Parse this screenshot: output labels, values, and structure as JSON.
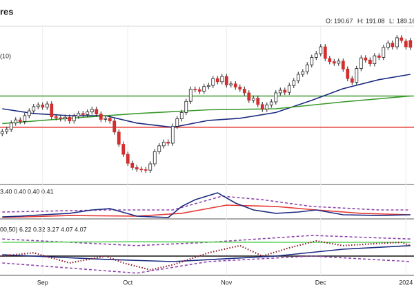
{
  "chart_data": [
    {
      "type": "candlestick",
      "title": "res",
      "label": "(10)",
      "ohlc_labels": [
        "O:",
        "H:",
        "L:"
      ],
      "ohlc_values": [
        190.67,
        191.08,
        189.16
      ],
      "open": [
        173.2,
        173.6,
        174.0,
        175.2,
        175.8,
        175.5,
        176.6,
        177.5,
        178.3,
        178.6,
        178.2,
        178.8,
        176.4,
        176.2,
        176.0,
        176.3,
        175.6,
        176.5,
        177.0,
        176.8,
        177.3,
        177.8,
        176.9,
        175.9,
        176.1,
        175.6,
        173.5,
        171.2,
        169.3,
        167.6,
        166.8,
        166.5,
        166.4,
        166.3,
        167.5,
        169.8,
        170.9,
        171.6,
        171.4,
        174.6,
        176.0,
        177.2,
        179.3,
        181.6,
        181.5,
        181.2,
        182.1,
        182.3,
        183.6,
        183.0,
        184.0,
        182.4,
        182.6,
        182.0,
        181.6,
        180.9,
        179.5,
        179.9,
        178.7,
        177.8,
        178.6,
        179.2,
        180.9,
        181.4,
        181.0,
        182.3,
        183.2,
        184.4,
        184.9,
        186.2,
        187.6,
        188.3,
        189.6,
        187.4,
        186.8,
        186.5,
        186.9,
        185.4,
        183.6,
        182.9,
        185.5,
        187.5,
        187.1,
        186.4,
        187.9,
        187.6,
        189.5,
        190.3,
        189.6,
        191.3,
        190.67,
        190.8
      ],
      "high": [
        174.1,
        174.5,
        175.7,
        176.3,
        176.3,
        177.1,
        178.0,
        178.8,
        179.1,
        179.1,
        179.3,
        179.3,
        176.9,
        176.7,
        176.8,
        176.8,
        177.0,
        177.5,
        177.5,
        177.8,
        178.3,
        178.3,
        177.4,
        176.6,
        176.6,
        176.1,
        174.0,
        171.7,
        169.8,
        168.1,
        167.3,
        167.0,
        166.9,
        168.0,
        170.3,
        171.4,
        172.1,
        172.1,
        175.1,
        176.5,
        177.7,
        179.8,
        182.1,
        182.1,
        182.0,
        182.6,
        182.8,
        184.1,
        184.1,
        184.5,
        184.5,
        183.1,
        183.1,
        182.5,
        182.1,
        181.4,
        180.4,
        180.4,
        179.2,
        179.1,
        179.7,
        181.4,
        181.9,
        181.9,
        182.8,
        183.7,
        184.9,
        185.4,
        186.7,
        188.1,
        188.8,
        190.1,
        190.1,
        187.9,
        187.3,
        187.4,
        187.4,
        185.9,
        184.1,
        186.0,
        188.0,
        188.0,
        187.6,
        188.4,
        188.4,
        190.0,
        190.8,
        190.8,
        191.8,
        191.8,
        191.1,
        191.3
      ],
      "low": [
        172.7,
        173.1,
        173.5,
        174.7,
        175.0,
        175.0,
        176.1,
        177.0,
        177.8,
        177.7,
        177.7,
        175.9,
        175.7,
        175.5,
        175.5,
        175.1,
        175.1,
        176.0,
        176.3,
        176.3,
        176.8,
        176.4,
        175.4,
        175.4,
        175.1,
        173.0,
        170.7,
        168.8,
        167.1,
        166.3,
        166.0,
        165.9,
        165.8,
        165.8,
        167.0,
        169.3,
        170.4,
        170.9,
        170.9,
        174.1,
        175.5,
        176.7,
        178.8,
        181.0,
        180.7,
        180.7,
        181.6,
        181.8,
        182.5,
        182.5,
        181.9,
        181.9,
        181.5,
        181.1,
        180.4,
        179.0,
        179.0,
        178.2,
        177.3,
        177.3,
        178.1,
        178.7,
        180.4,
        180.5,
        180.5,
        181.8,
        182.7,
        183.9,
        184.4,
        185.7,
        187.1,
        187.8,
        186.9,
        186.3,
        186.0,
        186.0,
        184.9,
        183.1,
        182.4,
        182.4,
        185.0,
        186.6,
        185.9,
        185.9,
        187.1,
        187.1,
        189.0,
        189.1,
        189.1,
        190.3,
        189.1,
        189.0
      ],
      "close": [
        173.6,
        174.0,
        175.2,
        175.8,
        175.5,
        176.6,
        177.5,
        178.3,
        178.6,
        178.2,
        178.8,
        176.4,
        176.2,
        176.0,
        176.3,
        175.6,
        176.5,
        177.0,
        176.8,
        177.3,
        177.8,
        176.9,
        175.9,
        176.1,
        175.6,
        173.5,
        171.2,
        169.3,
        167.6,
        166.8,
        166.5,
        166.4,
        166.3,
        167.5,
        169.8,
        170.9,
        171.6,
        171.4,
        174.6,
        176.0,
        177.2,
        179.3,
        181.6,
        181.5,
        181.2,
        182.1,
        182.3,
        183.6,
        183.0,
        184.0,
        182.4,
        182.6,
        182.0,
        181.6,
        180.9,
        179.5,
        179.9,
        178.7,
        177.8,
        178.6,
        179.2,
        180.9,
        181.4,
        181.0,
        182.3,
        183.2,
        184.4,
        184.9,
        186.2,
        187.6,
        188.3,
        189.6,
        187.4,
        186.8,
        186.5,
        186.9,
        185.4,
        183.6,
        182.9,
        185.5,
        187.5,
        187.1,
        186.4,
        187.9,
        187.6,
        189.5,
        190.3,
        189.6,
        191.3,
        190.8,
        189.6,
        189.5
      ],
      "up_color": "#ffffff",
      "down_color": "#d32f2f",
      "ylim": [
        163.6,
        193.5
      ],
      "xlim": [
        -0.5,
        91.8
      ],
      "xticks": [
        {
          "value": 9,
          "label": "Sep"
        },
        {
          "value": 28,
          "label": "Oct"
        },
        {
          "value": 50,
          "label": "Nov"
        },
        {
          "value": 71,
          "label": "Dec"
        },
        {
          "value": 90,
          "label": "2024"
        }
      ],
      "grid": true,
      "series": [
        {
          "color": "#1b2a80",
          "x": [
            0,
            7,
            15,
            23,
            30,
            38,
            46,
            53,
            61,
            69,
            76,
            84,
            91
          ],
          "values": [
            177.9,
            177.0,
            176.6,
            176.6,
            175.2,
            174.4,
            175.7,
            176.1,
            177.2,
            179.5,
            181.7,
            183.4,
            184.4
          ]
        },
        {
          "color": "#3a9a2a",
          "x": [
            0,
            15,
            30,
            46,
            61,
            76,
            91
          ],
          "values": [
            175.1,
            176.1,
            177.0,
            177.7,
            177.9,
            179.2,
            180.3
          ]
        }
      ],
      "hlines": [
        {
          "value": 174.4,
          "color": "#e53935"
        },
        {
          "value": 180.3,
          "color": "#3a9a2a"
        }
      ]
    },
    {
      "type": "line",
      "legend_text": "3.40 0.40 0.40 0.41",
      "ylim": [
        0.35,
        0.75
      ],
      "xlim": [
        -0.5,
        91.8
      ],
      "series": [
        {
          "color": "#8e44ad",
          "style": "dashed",
          "x": [
            0,
            23,
            38,
            49,
            58,
            69,
            84,
            91
          ],
          "values": [
            0.437,
            0.463,
            0.463,
            0.637,
            0.593,
            0.507,
            0.463,
            0.463
          ]
        },
        {
          "color": "#e53935",
          "x": [
            0,
            15,
            30,
            40,
            50,
            61,
            70,
            80,
            91
          ],
          "values": [
            0.367,
            0.393,
            0.385,
            0.42,
            0.524,
            0.507,
            0.463,
            0.42,
            0.402
          ]
        },
        {
          "color": "#1b2a80",
          "x": [
            0,
            4,
            9,
            15,
            20,
            24,
            30,
            37,
            40,
            43,
            48,
            52,
            56,
            61,
            66,
            70,
            76,
            84,
            91
          ],
          "values": [
            0.376,
            0.385,
            0.402,
            0.42,
            0.463,
            0.48,
            0.385,
            0.367,
            0.507,
            0.593,
            0.68,
            0.55,
            0.463,
            0.42,
            0.437,
            0.463,
            0.402,
            0.393,
            0.402
          ]
        }
      ]
    },
    {
      "type": "line",
      "legend_text": "00,50) 6.22 0.32 3.27 4.07 4.07",
      "ylim": [
        0,
        10
      ],
      "xlim": [
        -0.5,
        91.8
      ],
      "hlines": [
        {
          "value": 3.5,
          "color": "#111111"
        }
      ],
      "series": [
        {
          "color": "#8e44ad",
          "style": "dashed",
          "x": [
            0,
            30,
            46,
            69,
            91
          ],
          "values": [
            6.6,
            5.4,
            6.0,
            7.25,
            6.6
          ]
        },
        {
          "color": "#8e44ad",
          "style": "dashed",
          "x": [
            0,
            30,
            46,
            69,
            91
          ],
          "values": [
            2.25,
            0.4,
            2.5,
            3.5,
            2.5
          ]
        },
        {
          "color": "#5ad35a",
          "x": [
            0,
            30,
            61,
            91
          ],
          "values": [
            6.0,
            6.1,
            6.0,
            6.0
          ]
        },
        {
          "color": "#1b2a80",
          "x": [
            0,
            23,
            38,
            61,
            76,
            91
          ],
          "values": [
            3.75,
            2.9,
            2.5,
            3.5,
            4.75,
            5.4
          ]
        },
        {
          "color": "#8b1a2b",
          "style": "dotted",
          "x": [
            0,
            7,
            15,
            23,
            27,
            33,
            38,
            46,
            53,
            58,
            64,
            70,
            76,
            83,
            89,
            91
          ],
          "values": [
            3.5,
            4.1,
            2.25,
            3.5,
            2.25,
            1.0,
            1.9,
            4.1,
            5.4,
            3.5,
            5.0,
            6.25,
            5.4,
            5.75,
            6.0,
            5.4
          ]
        }
      ]
    }
  ]
}
